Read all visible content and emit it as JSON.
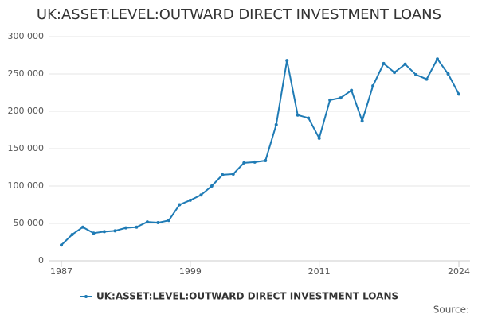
{
  "chart_data": {
    "type": "line",
    "title": "UK:ASSET:LEVEL:OUTWARD DIRECT INVESTMENT LOANS",
    "x": [
      1987,
      1988,
      1989,
      1990,
      1991,
      1992,
      1993,
      1994,
      1995,
      1996,
      1997,
      1998,
      1999,
      2000,
      2001,
      2002,
      2003,
      2004,
      2005,
      2006,
      2007,
      2008,
      2009,
      2010,
      2011,
      2012,
      2013,
      2014,
      2015,
      2016,
      2017,
      2018,
      2019,
      2020,
      2021,
      2022,
      2023,
      2024
    ],
    "series": [
      {
        "name": "UK:ASSET:LEVEL:OUTWARD DIRECT INVESTMENT LOANS",
        "color": "#1f7bb5",
        "values": [
          21000,
          35000,
          45000,
          37000,
          39000,
          40000,
          44000,
          45000,
          52000,
          51000,
          54000,
          75000,
          81000,
          88000,
          100000,
          115000,
          116000,
          131000,
          132000,
          134000,
          182000,
          268000,
          195000,
          191000,
          164000,
          215000,
          218000,
          228000,
          187000,
          234000,
          264000,
          252000,
          263000,
          249000,
          243000,
          270000,
          250000,
          223000
        ]
      }
    ],
    "xlim": [
      1987,
      2024
    ],
    "xticks": [
      1987,
      1999,
      2011,
      2024
    ],
    "ylim": [
      0,
      300000
    ],
    "yticks": [
      0,
      {
        "value": 50000,
        "label": "50 000"
      },
      {
        "value": 100000,
        "label": "100 000"
      },
      {
        "value": 150000,
        "label": "150 000"
      },
      {
        "value": 200000,
        "label": "200 000"
      },
      {
        "value": 250000,
        "label": "250 000"
      },
      {
        "value": 300000,
        "label": "300 000"
      }
    ],
    "grid": true,
    "source": "Source:"
  }
}
